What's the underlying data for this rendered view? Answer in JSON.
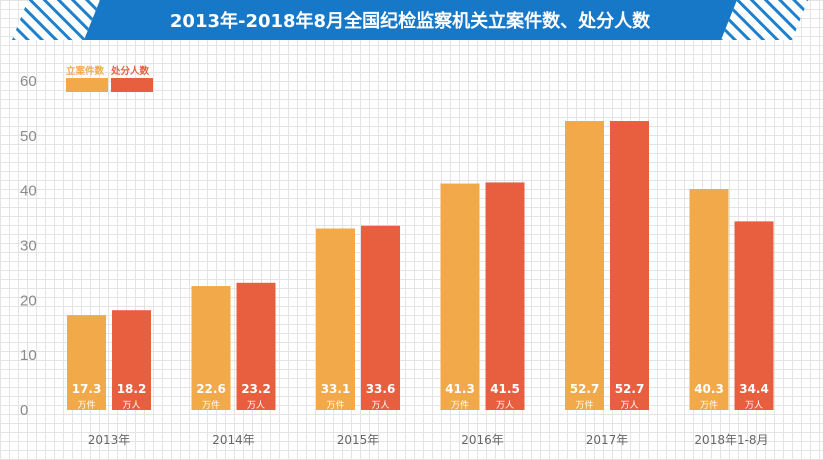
{
  "title": "2013年-2018年8月全国纪检监察机关立案件数、处分人数",
  "colors": {
    "banner_dark": "#1878c8",
    "banner_light": "#5ab2ee",
    "series_1": "#f2a94a",
    "series_2": "#e85f3f"
  },
  "chart_data": {
    "type": "bar",
    "title": "2013年-2018年8月全国纪检监察机关立案件数、处分人数",
    "categories": [
      "2013年",
      "2014年",
      "2015年",
      "2016年",
      "2017年",
      "2018年1-8月"
    ],
    "series": [
      {
        "name": "立案件数",
        "unit": "万件",
        "values": [
          17.3,
          22.6,
          33.1,
          41.3,
          52.7,
          40.3
        ],
        "labels": [
          "17.3",
          "22.6",
          "33.1",
          "41.3",
          "52.7",
          "40.3"
        ]
      },
      {
        "name": "处分人数",
        "unit": "万人",
        "values": [
          18.2,
          23.2,
          33.6,
          41.5,
          52.7,
          34.4
        ],
        "labels": [
          "18.2",
          "23.2",
          "33.6",
          "41.5",
          "52.7",
          "34.4"
        ]
      }
    ],
    "yticks": [
      "0",
      "10",
      "20",
      "30",
      "40",
      "50",
      "60"
    ],
    "ylim": [
      0,
      60
    ],
    "xlabel": "",
    "ylabel": "",
    "grid": true,
    "legend": "top-left"
  }
}
